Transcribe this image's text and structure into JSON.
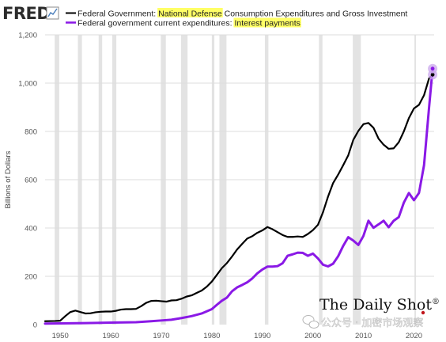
{
  "brand": {
    "logo_text": "FRED",
    "logo_icon": "line-chart-icon",
    "watermark_text": "The Daily Shot",
    "watermark_mark": "®",
    "social_watermark": "公众号 · 加密市场观察",
    "social_icon": "wechat-icon"
  },
  "colors": {
    "defense": "#000000",
    "interest": "#8a19e6",
    "recession": "#e3e3e3",
    "highlight": "#ffff66",
    "grid": "#dcdcdc",
    "endpoint_halo": "#c9a6ec"
  },
  "legend": {
    "items": [
      {
        "prefix": "Federal Government: ",
        "highlight": "National Defense",
        "suffix": " Consumption Expenditures and Gross Investment",
        "color_key": "defense"
      },
      {
        "prefix": "Federal government current expenditures: ",
        "highlight": "Interest payments",
        "suffix": "",
        "color_key": "interest"
      }
    ]
  },
  "chart_data": {
    "type": "line",
    "ylabel": "Billions of Dollars",
    "xlim": [
      1947,
      2024
    ],
    "ylim": [
      0,
      1200
    ],
    "y_ticks": [
      0,
      200,
      400,
      600,
      800,
      1000,
      1200
    ],
    "y_tick_labels": [
      "0",
      "200",
      "400",
      "600",
      "800",
      "1,000",
      "1,200"
    ],
    "x_ticks": [
      1950,
      1960,
      1970,
      1980,
      1990,
      2000,
      2010,
      2020
    ],
    "grid": true,
    "legend_position": "top-left",
    "recessions": [
      [
        1948.9,
        1949.8
      ],
      [
        1953.5,
        1954.3
      ],
      [
        1957.6,
        1958.3
      ],
      [
        1960.3,
        1961.1
      ],
      [
        1969.9,
        1970.9
      ],
      [
        1973.9,
        1975.2
      ],
      [
        1980.0,
        1980.5
      ],
      [
        1981.5,
        1982.9
      ],
      [
        1990.5,
        1991.2
      ],
      [
        2001.2,
        2001.9
      ],
      [
        2007.9,
        2009.5
      ],
      [
        2020.1,
        2020.4
      ]
    ],
    "series": [
      {
        "name": "Federal Government: National Defense Consumption Expenditures and Gross Investment",
        "color_key": "defense",
        "points": [
          [
            1947,
            14
          ],
          [
            1949,
            15
          ],
          [
            1950,
            16
          ],
          [
            1951,
            35
          ],
          [
            1952,
            52
          ],
          [
            1953,
            58
          ],
          [
            1954,
            52
          ],
          [
            1955,
            46
          ],
          [
            1956,
            47
          ],
          [
            1957,
            51
          ],
          [
            1958,
            53
          ],
          [
            1959,
            54
          ],
          [
            1960,
            54
          ],
          [
            1961,
            57
          ],
          [
            1962,
            62
          ],
          [
            1963,
            64
          ],
          [
            1964,
            64
          ],
          [
            1965,
            65
          ],
          [
            1966,
            76
          ],
          [
            1967,
            90
          ],
          [
            1968,
            98
          ],
          [
            1969,
            99
          ],
          [
            1970,
            97
          ],
          [
            1971,
            95
          ],
          [
            1972,
            100
          ],
          [
            1973,
            101
          ],
          [
            1974,
            107
          ],
          [
            1975,
            116
          ],
          [
            1976,
            121
          ],
          [
            1977,
            131
          ],
          [
            1978,
            141
          ],
          [
            1979,
            157
          ],
          [
            1980,
            178
          ],
          [
            1981,
            206
          ],
          [
            1982,
            234
          ],
          [
            1983,
            255
          ],
          [
            1984,
            282
          ],
          [
            1985,
            311
          ],
          [
            1986,
            334
          ],
          [
            1987,
            356
          ],
          [
            1988,
            366
          ],
          [
            1989,
            380
          ],
          [
            1990,
            390
          ],
          [
            1991,
            404
          ],
          [
            1992,
            395
          ],
          [
            1993,
            383
          ],
          [
            1994,
            371
          ],
          [
            1995,
            363
          ],
          [
            1996,
            363
          ],
          [
            1997,
            365
          ],
          [
            1998,
            363
          ],
          [
            1999,
            375
          ],
          [
            2000,
            391
          ],
          [
            2001,
            413
          ],
          [
            2002,
            465
          ],
          [
            2003,
            530
          ],
          [
            2004,
            586
          ],
          [
            2005,
            621
          ],
          [
            2006,
            660
          ],
          [
            2007,
            701
          ],
          [
            2008,
            765
          ],
          [
            2009,
            802
          ],
          [
            2010,
            830
          ],
          [
            2011,
            835
          ],
          [
            2012,
            815
          ],
          [
            2013,
            770
          ],
          [
            2014,
            745
          ],
          [
            2015,
            728
          ],
          [
            2016,
            730
          ],
          [
            2017,
            755
          ],
          [
            2018,
            800
          ],
          [
            2019,
            855
          ],
          [
            2020,
            895
          ],
          [
            2021,
            910
          ],
          [
            2022,
            950
          ],
          [
            2023,
            1020
          ],
          [
            2023.7,
            1035
          ]
        ]
      },
      {
        "name": "Federal government current expenditures: Interest payments",
        "color_key": "interest",
        "points": [
          [
            1947,
            4
          ],
          [
            1950,
            5
          ],
          [
            1955,
            6
          ],
          [
            1960,
            8
          ],
          [
            1965,
            10
          ],
          [
            1968,
            14
          ],
          [
            1970,
            17
          ],
          [
            1972,
            20
          ],
          [
            1974,
            27
          ],
          [
            1976,
            35
          ],
          [
            1978,
            46
          ],
          [
            1980,
            64
          ],
          [
            1981,
            82
          ],
          [
            1982,
            99
          ],
          [
            1983,
            112
          ],
          [
            1984,
            138
          ],
          [
            1985,
            154
          ],
          [
            1986,
            164
          ],
          [
            1987,
            175
          ],
          [
            1988,
            191
          ],
          [
            1989,
            212
          ],
          [
            1990,
            228
          ],
          [
            1991,
            240
          ],
          [
            1992,
            240
          ],
          [
            1993,
            242
          ],
          [
            1994,
            254
          ],
          [
            1995,
            285
          ],
          [
            1996,
            291
          ],
          [
            1997,
            298
          ],
          [
            1998,
            297
          ],
          [
            1999,
            285
          ],
          [
            2000,
            294
          ],
          [
            2001,
            274
          ],
          [
            2002,
            248
          ],
          [
            2003,
            241
          ],
          [
            2004,
            252
          ],
          [
            2005,
            283
          ],
          [
            2006,
            326
          ],
          [
            2007,
            362
          ],
          [
            2008,
            348
          ],
          [
            2009,
            330
          ],
          [
            2010,
            367
          ],
          [
            2011,
            430
          ],
          [
            2012,
            401
          ],
          [
            2013,
            415
          ],
          [
            2014,
            430
          ],
          [
            2015,
            403
          ],
          [
            2016,
            430
          ],
          [
            2017,
            445
          ],
          [
            2018,
            505
          ],
          [
            2019,
            545
          ],
          [
            2020,
            515
          ],
          [
            2021,
            545
          ],
          [
            2022,
            660
          ],
          [
            2023,
            900
          ],
          [
            2023.7,
            1060
          ]
        ]
      }
    ]
  }
}
